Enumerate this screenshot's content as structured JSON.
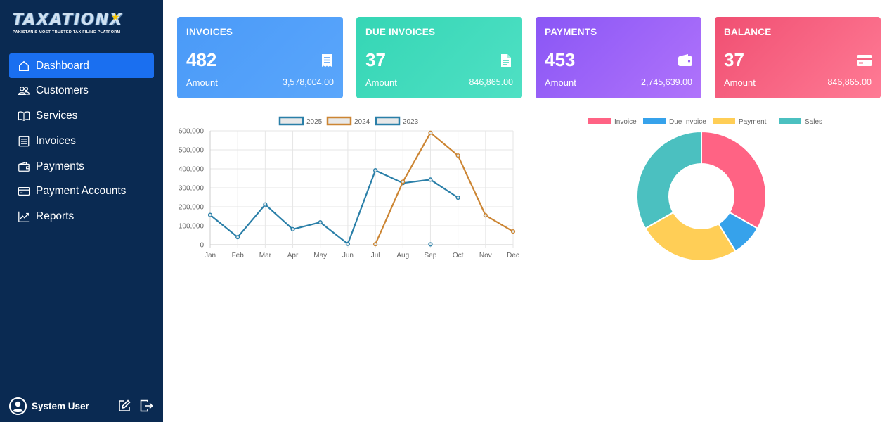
{
  "sidebar": {
    "logo_text": "TAXATIONX",
    "logo_tagline": "PAKISTAN'S MOST TRUSTED TAX FILING PLATFORM",
    "items": [
      {
        "label": "Dashboard",
        "icon": "home-icon",
        "active": true
      },
      {
        "label": "Customers",
        "icon": "users-icon"
      },
      {
        "label": "Services",
        "icon": "book-icon"
      },
      {
        "label": "Invoices",
        "icon": "list-icon"
      },
      {
        "label": "Payments",
        "icon": "wallet-icon"
      },
      {
        "label": "Payment Accounts",
        "icon": "credit-card-icon"
      },
      {
        "label": "Reports",
        "icon": "chart-icon"
      }
    ],
    "user": {
      "name": "System User"
    }
  },
  "cards": [
    {
      "title": "INVOICES",
      "value": "482",
      "label": "Amount",
      "amount": "3,578,004.00",
      "icon": "receipt-icon"
    },
    {
      "title": "DUE INVOICES",
      "value": "37",
      "label": "Amount",
      "amount": "846,865.00",
      "icon": "document-icon"
    },
    {
      "title": "PAYMENTS",
      "value": "453",
      "label": "Amount",
      "amount": "2,745,639.00",
      "icon": "wallet-icon"
    },
    {
      "title": "BALANCE",
      "value": "37",
      "label": "Amount",
      "amount": "846,865.00",
      "icon": "credit-card-icon"
    }
  ],
  "chart_data": [
    {
      "type": "line",
      "categories": [
        "Jan",
        "Feb",
        "Mar",
        "Apr",
        "May",
        "Jun",
        "Jul",
        "Aug",
        "Sep",
        "Oct",
        "Nov",
        "Dec"
      ],
      "ylim": [
        0,
        600000
      ],
      "yticks": [
        "0",
        "100,000",
        "200,000",
        "300,000",
        "400,000",
        "500,000",
        "600,000"
      ],
      "legend": "top",
      "grid": true,
      "series": [
        {
          "name": "2025",
          "color": "#2a7fa8",
          "values": [
            157000,
            40000,
            212000,
            82000,
            118000,
            5000,
            392000,
            325000,
            343000,
            248000,
            null,
            null
          ]
        },
        {
          "name": "2024",
          "color": "#cc8533",
          "values": [
            null,
            null,
            null,
            null,
            null,
            null,
            3000,
            332000,
            590000,
            470000,
            155000,
            70000
          ]
        },
        {
          "name": "2023",
          "color": "#2a7fa8",
          "values": [
            null,
            null,
            null,
            null,
            null,
            null,
            null,
            null,
            2000,
            null,
            null,
            null
          ]
        }
      ]
    },
    {
      "type": "pie",
      "donut": true,
      "legend": "top",
      "series": [
        {
          "name": "Invoice",
          "color": "#ff6384",
          "value": 3578004
        },
        {
          "name": "Due Invoice",
          "color": "#36a2eb",
          "value": 846865
        },
        {
          "name": "Payment",
          "color": "#ffce56",
          "value": 2745639
        },
        {
          "name": "Sales",
          "color": "#4bc0c0",
          "value": 3578004
        }
      ]
    }
  ]
}
